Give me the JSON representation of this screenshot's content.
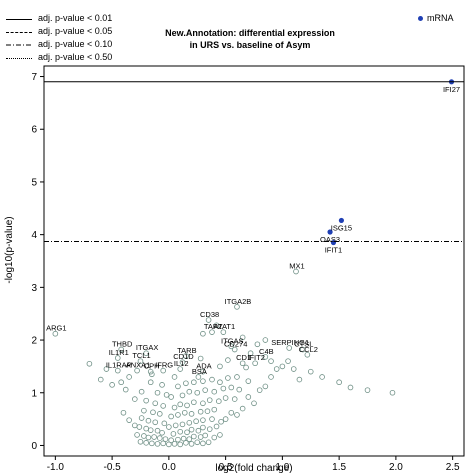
{
  "title_line1": "New.Annotation: differential expression",
  "title_line2": "in URS vs. baseline of Asym",
  "legend_lines": [
    {
      "label": "adj. p-value < 0.01",
      "style": "solid"
    },
    {
      "label": "adj. p-value < 0.05",
      "style": "dashed"
    },
    {
      "label": "adj. p-value < 0.10",
      "style": "dashdot"
    },
    {
      "label": "adj. p-value < 0.50",
      "style": "dotted"
    }
  ],
  "legend_points": [
    {
      "label": "mRNA",
      "color": "#1f3fb4"
    }
  ],
  "colors": {
    "points": "#6e8f85",
    "highlight": "#1f3fb4",
    "line": "#000000"
  },
  "chart_data": {
    "type": "scatter",
    "xlabel": "log2(fold change)",
    "ylabel": "-log10(p-value)",
    "xlim": [
      -1.1,
      2.6
    ],
    "ylim": [
      -0.2,
      7.2
    ],
    "xticks": [
      "-1.0",
      "-0.5",
      "0.0",
      "0.5",
      "1.0",
      "1.5",
      "2.0",
      "2.5"
    ],
    "xtick_values": [
      -1.0,
      -0.5,
      0.0,
      0.5,
      1.0,
      1.5,
      2.0,
      2.5
    ],
    "yticks": [
      "0",
      "1",
      "2",
      "3",
      "4",
      "5",
      "6",
      "7"
    ],
    "ytick_values": [
      0,
      1,
      2,
      3,
      4,
      5,
      6,
      7
    ],
    "thresholds": [
      {
        "y": 6.9,
        "style": "solid"
      },
      {
        "y": 3.87,
        "style": "dashdot"
      }
    ],
    "highlighted": [
      {
        "label": "IFI27",
        "x": 2.49,
        "y": 6.9
      },
      {
        "label": "ISG15",
        "x": 1.52,
        "y": 4.27
      },
      {
        "label": "OAS3",
        "x": 1.42,
        "y": 4.05
      },
      {
        "label": "IFIT1",
        "x": 1.45,
        "y": 3.85
      }
    ],
    "labeled": [
      {
        "label": "MX1",
        "x": 1.12,
        "y": 3.3
      },
      {
        "label": "ITGA2B",
        "x": 0.6,
        "y": 2.63
      },
      {
        "label": "CD38",
        "x": 0.35,
        "y": 2.38
      },
      {
        "label": "TAP2",
        "x": 0.38,
        "y": 2.15
      },
      {
        "label": "ATAT1",
        "x": 0.48,
        "y": 2.15
      },
      {
        "label": "SERPING1",
        "x": 1.06,
        "y": 1.85
      },
      {
        "label": "CTSL",
        "x": 1.18,
        "y": 1.82
      },
      {
        "label": "CCL2",
        "x": 1.22,
        "y": 1.72
      },
      {
        "label": "ITGAS",
        "x": 0.55,
        "y": 1.88
      },
      {
        "label": "CD274",
        "x": 0.58,
        "y": 1.82
      },
      {
        "label": "C4B",
        "x": 0.85,
        "y": 1.68
      },
      {
        "label": "CD1",
        "x": 0.65,
        "y": 1.56
      },
      {
        "label": "IFIT2",
        "x": 0.76,
        "y": 1.56
      },
      {
        "label": "ARG1",
        "x": -1.0,
        "y": 2.12
      },
      {
        "label": "THBD",
        "x": -0.42,
        "y": 1.82
      },
      {
        "label": "IL1R1",
        "x": -0.45,
        "y": 1.66
      },
      {
        "label": "ITGAX",
        "x": -0.2,
        "y": 1.75
      },
      {
        "label": "TCL1",
        "x": -0.25,
        "y": 1.6
      },
      {
        "label": "IL1RAP",
        "x": -0.45,
        "y": 1.42
      },
      {
        "label": "CPH",
        "x": -0.16,
        "y": 1.4
      },
      {
        "label": "ANXA1",
        "x": -0.28,
        "y": 1.42
      },
      {
        "label": "IFRG",
        "x": -0.05,
        "y": 1.42
      },
      {
        "label": "TARB",
        "x": 0.15,
        "y": 1.7
      },
      {
        "label": "CD1D",
        "x": 0.12,
        "y": 1.58
      },
      {
        "label": "IL12",
        "x": 0.1,
        "y": 1.45
      },
      {
        "label": "ADA",
        "x": 0.3,
        "y": 1.4
      },
      {
        "label": "BSA",
        "x": 0.26,
        "y": 1.3
      }
    ],
    "points": [
      [
        0.0,
        0.02
      ],
      [
        0.05,
        0.03
      ],
      [
        -0.05,
        0.04
      ],
      [
        0.1,
        0.02
      ],
      [
        -0.1,
        0.03
      ],
      [
        0.15,
        0.05
      ],
      [
        -0.15,
        0.04
      ],
      [
        0.2,
        0.03
      ],
      [
        -0.2,
        0.05
      ],
      [
        0.25,
        0.06
      ],
      [
        0.3,
        0.04
      ],
      [
        -0.25,
        0.07
      ],
      [
        0.35,
        0.06
      ],
      [
        0.02,
        0.1
      ],
      [
        -0.03,
        0.12
      ],
      [
        0.08,
        0.11
      ],
      [
        -0.08,
        0.14
      ],
      [
        0.13,
        0.13
      ],
      [
        -0.13,
        0.16
      ],
      [
        0.18,
        0.12
      ],
      [
        -0.18,
        0.15
      ],
      [
        0.22,
        0.17
      ],
      [
        -0.22,
        0.18
      ],
      [
        0.28,
        0.16
      ],
      [
        0.32,
        0.19
      ],
      [
        -0.28,
        0.2
      ],
      [
        0.4,
        0.15
      ],
      [
        0.45,
        0.2
      ],
      [
        0.04,
        0.22
      ],
      [
        -0.06,
        0.24
      ],
      [
        0.1,
        0.26
      ],
      [
        -0.1,
        0.28
      ],
      [
        0.16,
        0.25
      ],
      [
        -0.16,
        0.29
      ],
      [
        0.2,
        0.3
      ],
      [
        -0.2,
        0.32
      ],
      [
        0.26,
        0.28
      ],
      [
        0.3,
        0.34
      ],
      [
        -0.26,
        0.35
      ],
      [
        0.36,
        0.31
      ],
      [
        0.42,
        0.36
      ],
      [
        -0.3,
        0.38
      ],
      [
        0.0,
        0.35
      ],
      [
        0.06,
        0.38
      ],
      [
        -0.04,
        0.42
      ],
      [
        0.12,
        0.4
      ],
      [
        -0.12,
        0.44
      ],
      [
        0.18,
        0.43
      ],
      [
        0.24,
        0.46
      ],
      [
        -0.18,
        0.47
      ],
      [
        0.3,
        0.48
      ],
      [
        0.38,
        0.5
      ],
      [
        -0.24,
        0.52
      ],
      [
        0.46,
        0.45
      ],
      [
        0.5,
        0.5
      ],
      [
        -0.35,
        0.48
      ],
      [
        0.02,
        0.55
      ],
      [
        0.08,
        0.58
      ],
      [
        -0.08,
        0.6
      ],
      [
        0.14,
        0.62
      ],
      [
        -0.14,
        0.63
      ],
      [
        0.2,
        0.6
      ],
      [
        0.28,
        0.64
      ],
      [
        -0.22,
        0.66
      ],
      [
        0.34,
        0.65
      ],
      [
        0.4,
        0.68
      ],
      [
        0.55,
        0.62
      ],
      [
        0.6,
        0.58
      ],
      [
        -0.4,
        0.62
      ],
      [
        0.65,
        0.7
      ],
      [
        0.05,
        0.72
      ],
      [
        -0.05,
        0.75
      ],
      [
        0.1,
        0.78
      ],
      [
        -0.12,
        0.8
      ],
      [
        0.16,
        0.76
      ],
      [
        0.22,
        0.82
      ],
      [
        -0.2,
        0.85
      ],
      [
        0.3,
        0.8
      ],
      [
        0.36,
        0.86
      ],
      [
        0.44,
        0.84
      ],
      [
        0.5,
        0.9
      ],
      [
        0.58,
        0.88
      ],
      [
        -0.3,
        0.88
      ],
      [
        0.7,
        0.92
      ],
      [
        0.75,
        0.8
      ],
      [
        0.02,
        0.92
      ],
      [
        -0.02,
        0.96
      ],
      [
        0.12,
        0.95
      ],
      [
        -0.1,
        1.0
      ],
      [
        0.18,
        1.02
      ],
      [
        0.25,
        1.0
      ],
      [
        -0.24,
        1.02
      ],
      [
        0.32,
        1.05
      ],
      [
        0.4,
        1.02
      ],
      [
        0.48,
        1.08
      ],
      [
        0.55,
        1.1
      ],
      [
        0.62,
        1.06
      ],
      [
        -0.38,
        1.06
      ],
      [
        0.8,
        1.05
      ],
      [
        0.85,
        1.12
      ],
      [
        0.08,
        1.12
      ],
      [
        -0.06,
        1.15
      ],
      [
        0.15,
        1.18
      ],
      [
        0.22,
        1.2
      ],
      [
        -0.16,
        1.2
      ],
      [
        0.3,
        1.22
      ],
      [
        0.38,
        1.25
      ],
      [
        0.45,
        1.2
      ],
      [
        0.52,
        1.28
      ],
      [
        0.6,
        1.3
      ],
      [
        0.7,
        1.22
      ],
      [
        0.9,
        1.3
      ],
      [
        -0.5,
        1.15
      ],
      [
        -0.6,
        1.25
      ],
      [
        0.95,
        1.45
      ],
      [
        1.0,
        1.5
      ],
      [
        1.05,
        1.6
      ],
      [
        1.1,
        1.45
      ],
      [
        1.25,
        1.4
      ],
      [
        1.35,
        1.3
      ],
      [
        1.5,
        1.2
      ],
      [
        1.6,
        1.1
      ],
      [
        1.75,
        1.05
      ],
      [
        1.97,
        1.0
      ],
      [
        1.15,
        1.25
      ],
      [
        0.9,
        1.6
      ],
      [
        0.45,
        1.5
      ],
      [
        0.52,
        1.62
      ],
      [
        0.68,
        1.48
      ],
      [
        0.72,
        1.75
      ],
      [
        0.85,
        2.0
      ],
      [
        0.28,
        1.65
      ],
      [
        -0.35,
        1.3
      ],
      [
        -0.55,
        1.45
      ],
      [
        -0.7,
        1.55
      ],
      [
        -0.15,
        1.35
      ],
      [
        0.05,
        1.3
      ],
      [
        -0.42,
        1.2
      ],
      [
        0.65,
        2.05
      ],
      [
        0.42,
        2.28
      ],
      [
        0.3,
        2.12
      ],
      [
        0.78,
        1.92
      ]
    ]
  }
}
